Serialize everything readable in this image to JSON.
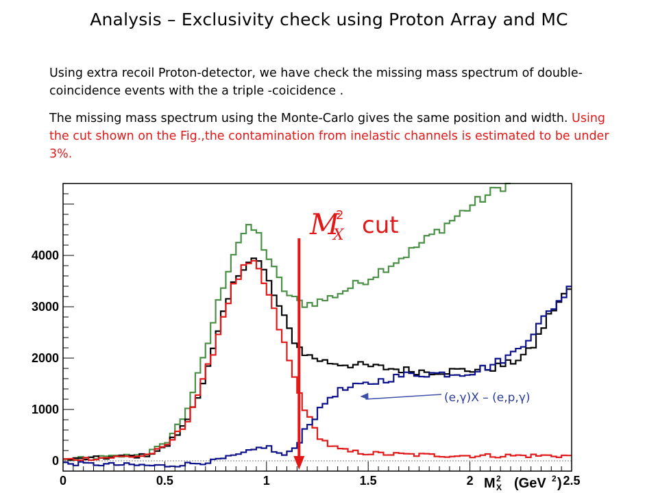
{
  "title": "Analysis – Exclusivity check using Proton Array and MC",
  "paragraph1": "Using extra recoil  Proton-detector, we have  check the missing mass spectrum of double-coincidence events with the a triple -coicidence .",
  "paragraph2_black": "The missing mass spectrum using the Monte-Carlo gives the same position and width. ",
  "paragraph2_red": "Using the cut shown on the Fig.,the contamination from inelastic channels is estimated to be under 3%.",
  "colors": {
    "red": "#e11818",
    "black": "#000000",
    "green": "#4a8f45",
    "blue": "#0a0f8a",
    "cut": "#e11818",
    "arrow": "#3d4fa8"
  },
  "chart_data": {
    "type": "line",
    "xlim": [
      0,
      2.5
    ],
    "ylim": [
      -200,
      5400
    ],
    "xticks": [
      "0",
      "0.5",
      "1",
      "1.5",
      "2",
      "2.5"
    ],
    "yticks": [
      "0",
      "1000",
      "2000",
      "3000",
      "4000"
    ],
    "xlabel": {
      "main": "M",
      "sup": "2",
      "sub": "X",
      "unit": "(GeV",
      "unit_sup": "2",
      "unit_close": ")"
    },
    "cut_label": {
      "main": "M",
      "sup": "2",
      "sub": "X",
      "word": "cut"
    },
    "cut_x": 1.16,
    "annotation": {
      "text": "(e,γ)X – (e,p,γ)",
      "points_to_x": 1.44,
      "points_to_y": 1200
    },
    "series": [
      {
        "color": "green",
        "x": [
          0,
          0.4,
          0.5,
          0.6,
          0.7,
          0.75,
          0.8,
          0.85,
          0.9,
          0.95,
          1.0,
          1.05,
          1.1,
          1.15,
          1.2,
          1.3,
          1.4,
          1.5,
          1.6,
          1.7,
          1.8,
          1.9,
          2.0,
          2.1,
          2.2
        ],
        "values": [
          20,
          120,
          320,
          900,
          2100,
          2900,
          3600,
          4200,
          4500,
          4500,
          4050,
          3600,
          3250,
          3100,
          3050,
          3150,
          3350,
          3550,
          3800,
          4050,
          4350,
          4650,
          4950,
          5200,
          5450
        ]
      },
      {
        "color": "black",
        "x": [
          0,
          0.4,
          0.5,
          0.6,
          0.7,
          0.75,
          0.8,
          0.85,
          0.9,
          0.95,
          1.0,
          1.05,
          1.1,
          1.15,
          1.2,
          1.3,
          1.4,
          1.5,
          1.6,
          1.7,
          1.8,
          1.9,
          2.0,
          2.1,
          2.2,
          2.3,
          2.4,
          2.5
        ],
        "values": [
          20,
          100,
          250,
          700,
          1650,
          2300,
          3000,
          3550,
          3900,
          3950,
          3600,
          3100,
          2650,
          2250,
          2050,
          1920,
          1880,
          1840,
          1800,
          1760,
          1740,
          1750,
          1770,
          1800,
          1900,
          2150,
          2900,
          3400
        ]
      },
      {
        "color": "red",
        "x": [
          0,
          0.4,
          0.5,
          0.6,
          0.7,
          0.75,
          0.8,
          0.85,
          0.9,
          0.95,
          1.0,
          1.05,
          1.1,
          1.15,
          1.2,
          1.25,
          1.3,
          1.35,
          1.4,
          1.5,
          1.6,
          1.7,
          1.8,
          2.0,
          2.2,
          2.5
        ],
        "values": [
          20,
          100,
          250,
          700,
          1650,
          2300,
          3000,
          3500,
          3800,
          3800,
          3350,
          2750,
          2100,
          1450,
          900,
          520,
          330,
          230,
          180,
          150,
          130,
          120,
          110,
          100,
          100,
          100
        ]
      },
      {
        "color": "blue",
        "x": [
          0,
          0.3,
          0.5,
          0.7,
          0.8,
          0.9,
          1.0,
          1.05,
          1.1,
          1.15,
          1.2,
          1.25,
          1.3,
          1.35,
          1.4,
          1.5,
          1.6,
          1.7,
          1.8,
          1.9,
          2.0,
          2.1,
          2.2,
          2.3,
          2.4,
          2.5
        ],
        "values": [
          -50,
          -80,
          -100,
          -30,
          50,
          150,
          300,
          150,
          100,
          300,
          700,
          900,
          1200,
          1350,
          1400,
          1500,
          1600,
          1680,
          1700,
          1700,
          1720,
          1850,
          2050,
          2450,
          2950,
          3400
        ]
      }
    ]
  }
}
